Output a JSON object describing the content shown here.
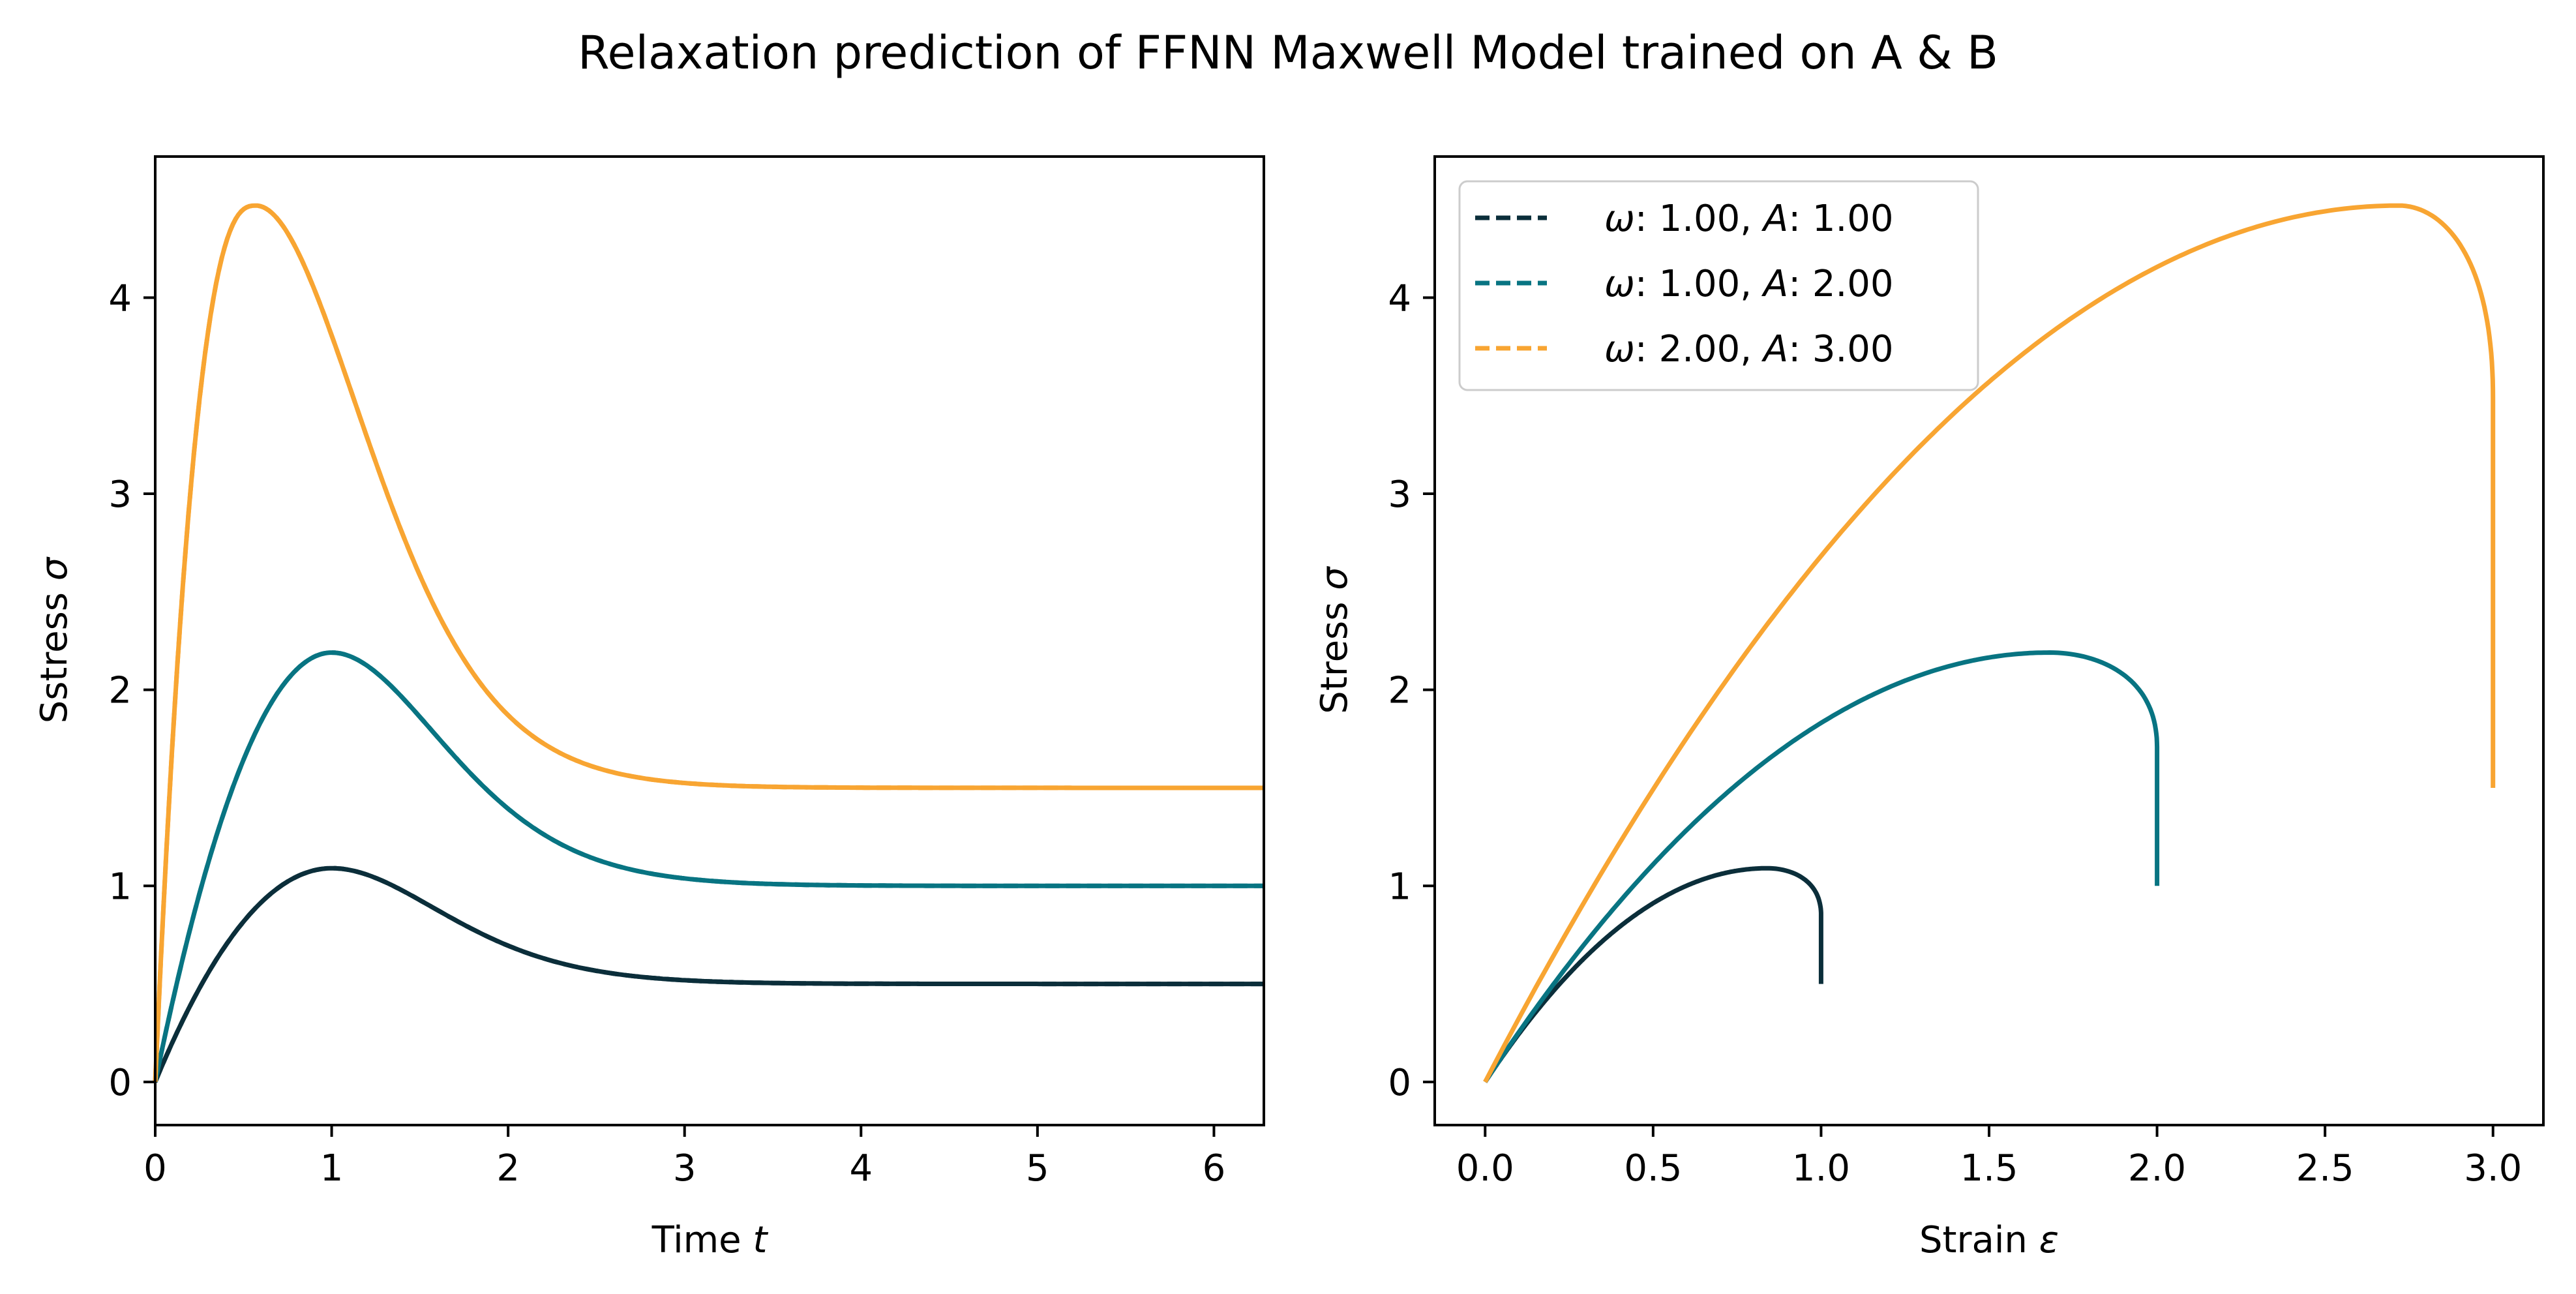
{
  "figure": {
    "title": "Relaxation prediction of FFNN Maxwell Model trained on A & B"
  },
  "colors": {
    "series_1": "#0b2e3a",
    "series_2": "#087482",
    "series_3": "#f8a532",
    "axes": "#000000",
    "background": "#ffffff"
  },
  "chart_data": [
    {
      "type": "line",
      "xlabel": "Time",
      "xlabel_symbol": "t",
      "ylabel": "Sstress",
      "ylabel_symbol": "σ",
      "xlim": [
        0,
        6.283
      ],
      "ylim": [
        -0.22,
        4.72
      ],
      "xticks": [
        0,
        1,
        2,
        3,
        4,
        5,
        6
      ],
      "xtick_labels": [
        "0",
        "1",
        "2",
        "3",
        "4",
        "5",
        "6"
      ],
      "yticks": [
        0,
        1,
        2,
        3,
        4
      ],
      "ytick_labels": [
        "0",
        "1",
        "2",
        "3",
        "4"
      ],
      "grid": false,
      "legend": false,
      "curve_model": "relaxation",
      "series": [
        {
          "omega": 1.0,
          "amplitude": 1.0,
          "peak": [
            1.0,
            1.09
          ],
          "final_value": 0.5,
          "style": "solid"
        },
        {
          "omega": 1.0,
          "amplitude": 1.0,
          "peak": [
            1.0,
            1.09
          ],
          "final_value": 0.5,
          "style": "dashed"
        },
        {
          "omega": 1.0,
          "amplitude": 2.0,
          "peak": [
            1.0,
            2.19
          ],
          "final_value": 1.0,
          "style": "solid"
        },
        {
          "omega": 1.0,
          "amplitude": 2.0,
          "peak": [
            1.0,
            2.19
          ],
          "final_value": 1.0,
          "style": "dashed"
        },
        {
          "omega": 2.0,
          "amplitude": 3.0,
          "peak": [
            0.57,
            4.47
          ],
          "final_value": 1.5,
          "style": "solid"
        },
        {
          "omega": 2.0,
          "amplitude": 3.0,
          "peak": [
            0.57,
            4.47
          ],
          "final_value": 1.5,
          "style": "dashed"
        }
      ]
    },
    {
      "type": "line",
      "xlabel": "Strain",
      "xlabel_symbol": "ε",
      "ylabel": "Stress",
      "ylabel_symbol": "σ",
      "xlim": [
        -0.15,
        3.15
      ],
      "ylim": [
        -0.22,
        4.72
      ],
      "xticks": [
        0,
        0.5,
        1,
        1.5,
        2,
        2.5,
        3
      ],
      "xtick_labels": [
        "0.0",
        "0.5",
        "1.0",
        "1.5",
        "2.0",
        "2.5",
        "3.0"
      ],
      "yticks": [
        0,
        1,
        2,
        3,
        4
      ],
      "ytick_labels": [
        "0",
        "1",
        "2",
        "3",
        "4"
      ],
      "grid": false,
      "legend": true,
      "legend_position": "upper-left",
      "curve_model": "stress-strain",
      "series": [
        {
          "omega": 1.0,
          "amplitude": 1.0,
          "peak_strain": 0.84,
          "peak_stress": 1.09,
          "end_strain": 1.0,
          "end_stress": 0.5,
          "style": "solid"
        },
        {
          "omega": 1.0,
          "amplitude": 2.0,
          "peak_strain": 1.68,
          "peak_stress": 2.19,
          "end_strain": 2.0,
          "end_stress": 1.0,
          "style": "solid"
        },
        {
          "omega": 2.0,
          "amplitude": 3.0,
          "peak_strain": 2.72,
          "peak_stress": 4.47,
          "end_strain": 3.0,
          "end_stress": 1.5,
          "style": "solid"
        }
      ],
      "legend_entries": [
        {
          "omega_symbol": "ω",
          "omega_value": ": 1.00, ",
          "amp_symbol": "A",
          "amp_value": ": 1.00",
          "color_key": "series_1"
        },
        {
          "omega_symbol": "ω",
          "omega_value": ": 1.00, ",
          "amp_symbol": "A",
          "amp_value": ": 2.00",
          "color_key": "series_2"
        },
        {
          "omega_symbol": "ω",
          "omega_value": ": 2.00, ",
          "amp_symbol": "A",
          "amp_value": ": 3.00",
          "color_key": "series_3"
        }
      ]
    }
  ]
}
